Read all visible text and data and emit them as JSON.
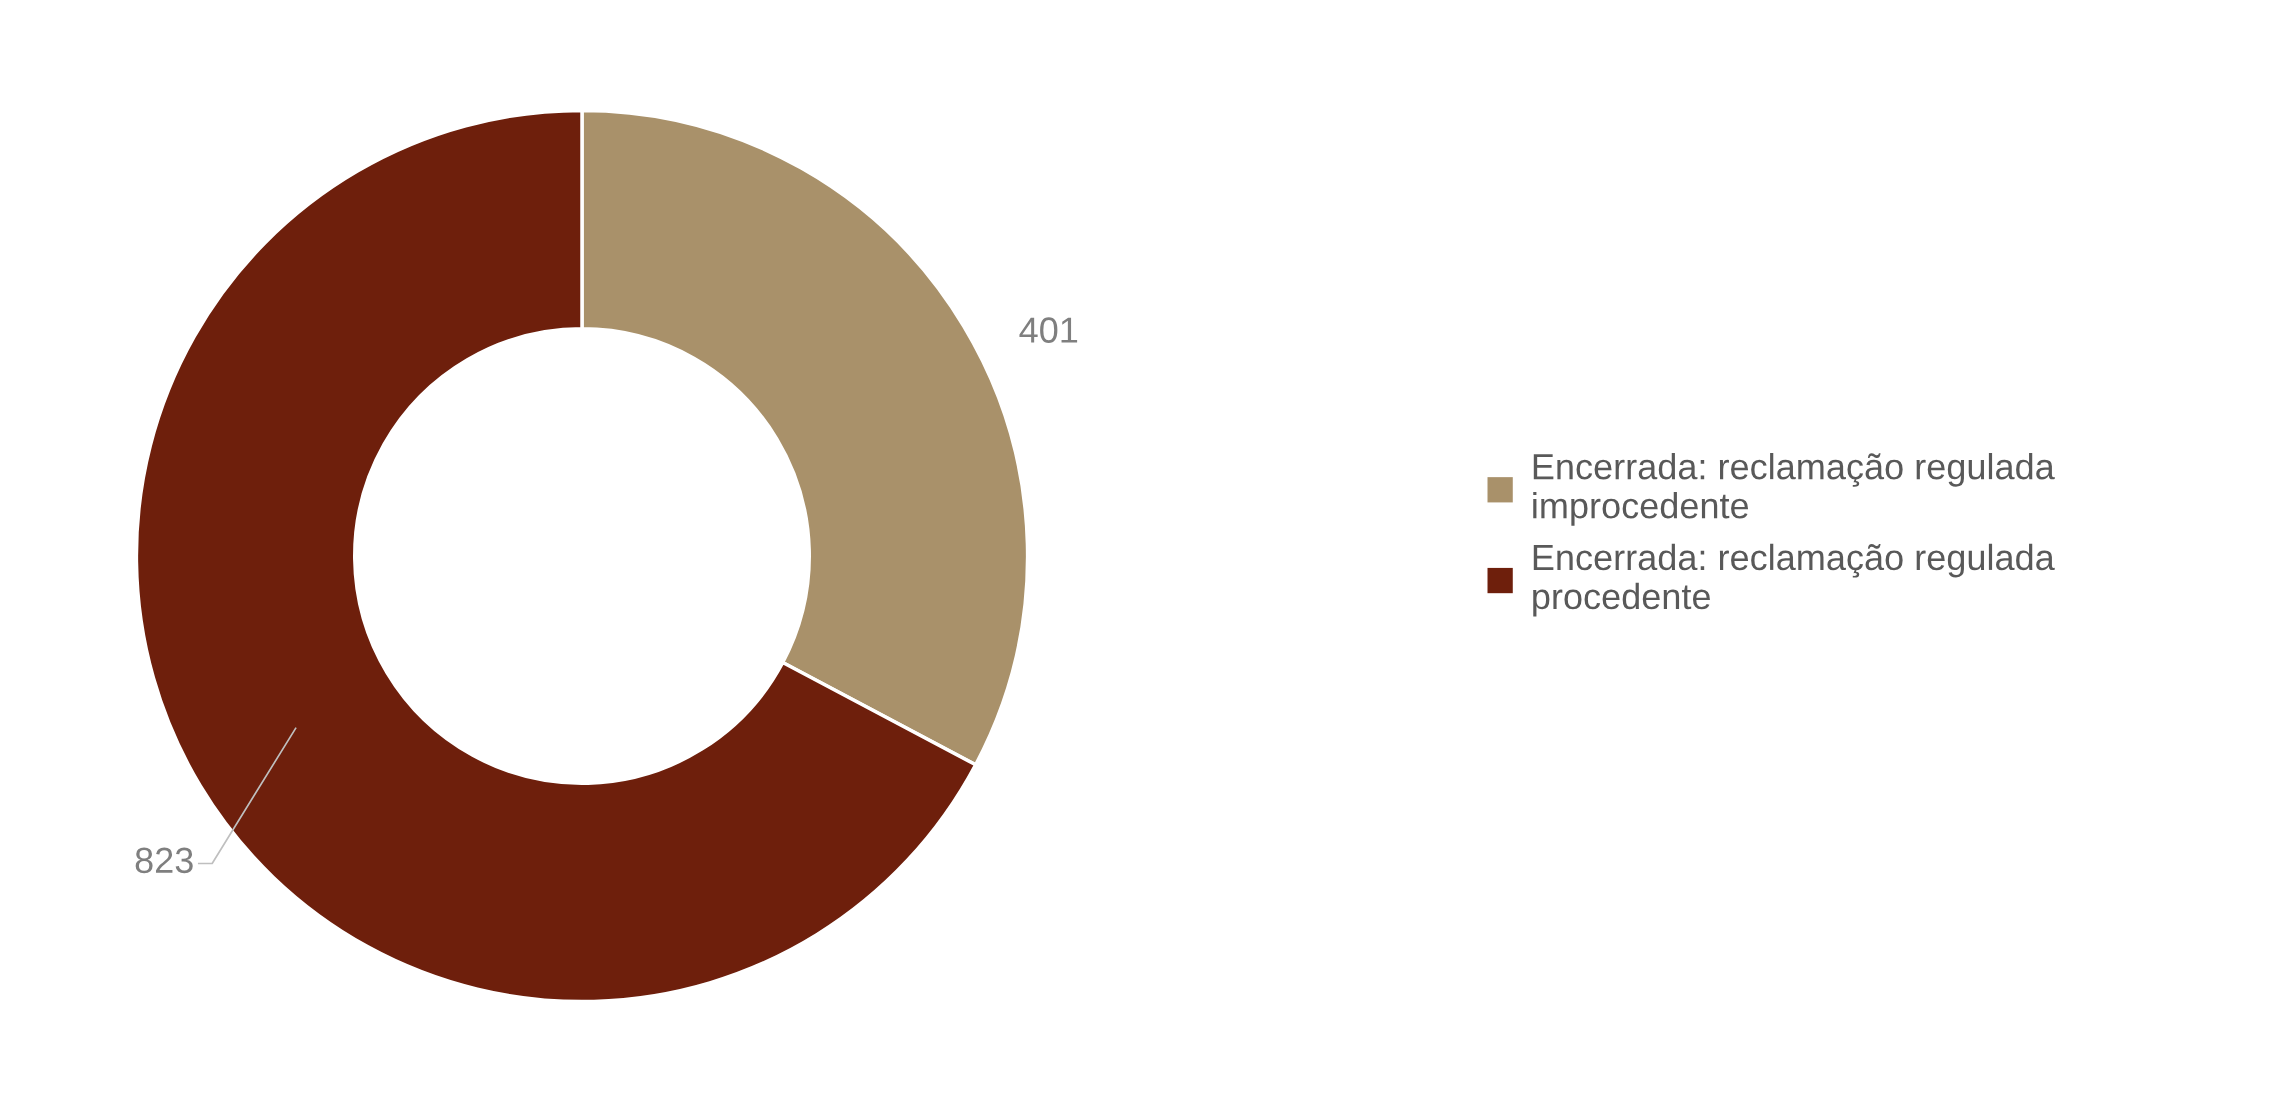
{
  "chart_data": {
    "type": "donut",
    "categories": [
      "Encerrada: reclamação regulada improcedente",
      "Encerrada: reclamação regulada procedente"
    ],
    "values": [
      401,
      823
    ],
    "colors": [
      "#a9916a",
      "#6e1f0c"
    ],
    "data_labels": true,
    "legend": "right"
  }
}
